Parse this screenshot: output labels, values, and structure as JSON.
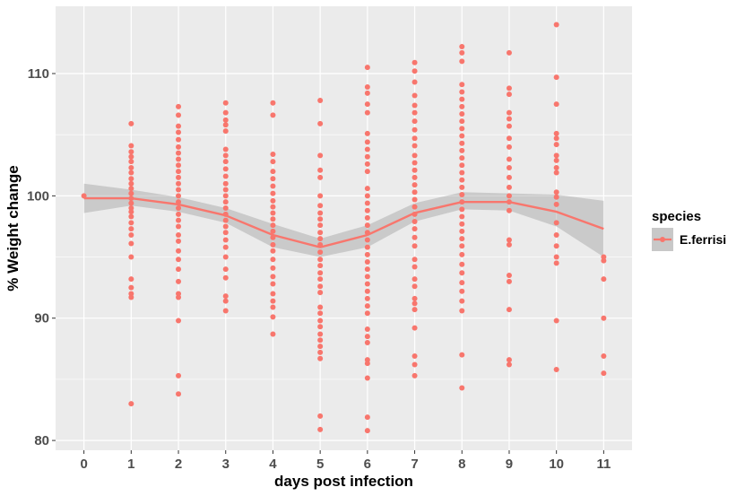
{
  "chart_data": {
    "type": "scatter",
    "title": "",
    "xlabel": "days post infection",
    "ylabel": "% Weight change",
    "xlim": [
      -0.6,
      11.6
    ],
    "ylim": [
      79.2,
      115.5
    ],
    "x_ticks": [
      0,
      1,
      2,
      3,
      4,
      5,
      6,
      7,
      8,
      9,
      10,
      11
    ],
    "y_ticks": [
      80,
      90,
      100,
      110
    ],
    "y_minor_ticks": [
      85,
      95,
      105
    ],
    "grid": true,
    "legend": {
      "title": "species",
      "position": "right",
      "entries": [
        "E.ferrisi"
      ]
    },
    "series": [
      {
        "name": "E.ferrisi",
        "color": "#f8766d",
        "points": [
          [
            0,
            100.0
          ],
          [
            1,
            83.0
          ],
          [
            1,
            91.7
          ],
          [
            1,
            92.0
          ],
          [
            1,
            92.5
          ],
          [
            1,
            93.2
          ],
          [
            1,
            95.0
          ],
          [
            1,
            96.1
          ],
          [
            1,
            96.8
          ],
          [
            1,
            97.3
          ],
          [
            1,
            97.8
          ],
          [
            1,
            98.3
          ],
          [
            1,
            98.7
          ],
          [
            1,
            99.0
          ],
          [
            1,
            99.4
          ],
          [
            1,
            99.8
          ],
          [
            1,
            100.2
          ],
          [
            1,
            100.6
          ],
          [
            1,
            101.0
          ],
          [
            1,
            101.4
          ],
          [
            1,
            101.9
          ],
          [
            1,
            102.3
          ],
          [
            1,
            102.8
          ],
          [
            1,
            103.2
          ],
          [
            1,
            103.6
          ],
          [
            1,
            104.1
          ],
          [
            1,
            105.9
          ],
          [
            2,
            83.8
          ],
          [
            2,
            85.3
          ],
          [
            2,
            89.8
          ],
          [
            2,
            91.7
          ],
          [
            2,
            92.0
          ],
          [
            2,
            93.0
          ],
          [
            2,
            94.0
          ],
          [
            2,
            94.8
          ],
          [
            2,
            95.5
          ],
          [
            2,
            96.3
          ],
          [
            2,
            96.8
          ],
          [
            2,
            97.5
          ],
          [
            2,
            98.0
          ],
          [
            2,
            98.5
          ],
          [
            2,
            99.0
          ],
          [
            2,
            99.5
          ],
          [
            2,
            100.0
          ],
          [
            2,
            100.5
          ],
          [
            2,
            101.0
          ],
          [
            2,
            101.5
          ],
          [
            2,
            102.0
          ],
          [
            2,
            102.5
          ],
          [
            2,
            103.0
          ],
          [
            2,
            103.5
          ],
          [
            2,
            104.0
          ],
          [
            2,
            104.6
          ],
          [
            2,
            105.2
          ],
          [
            2,
            105.7
          ],
          [
            2,
            106.6
          ],
          [
            2,
            107.3
          ],
          [
            3,
            90.6
          ],
          [
            3,
            91.4
          ],
          [
            3,
            91.8
          ],
          [
            3,
            93.3
          ],
          [
            3,
            94.0
          ],
          [
            3,
            95.0
          ],
          [
            3,
            95.8
          ],
          [
            3,
            96.4
          ],
          [
            3,
            97.0
          ],
          [
            3,
            97.5
          ],
          [
            3,
            98.0
          ],
          [
            3,
            98.5
          ],
          [
            3,
            99.0
          ],
          [
            3,
            99.5
          ],
          [
            3,
            100.0
          ],
          [
            3,
            100.5
          ],
          [
            3,
            101.0
          ],
          [
            3,
            101.6
          ],
          [
            3,
            102.2
          ],
          [
            3,
            102.8
          ],
          [
            3,
            103.3
          ],
          [
            3,
            103.8
          ],
          [
            3,
            105.3
          ],
          [
            3,
            105.8
          ],
          [
            3,
            106.2
          ],
          [
            3,
            106.8
          ],
          [
            3,
            107.6
          ],
          [
            4,
            88.7
          ],
          [
            4,
            90.1
          ],
          [
            4,
            90.9
          ],
          [
            4,
            91.4
          ],
          [
            4,
            92.0
          ],
          [
            4,
            92.8
          ],
          [
            4,
            93.4
          ],
          [
            4,
            94.1
          ],
          [
            4,
            94.8
          ],
          [
            4,
            95.5
          ],
          [
            4,
            96.0
          ],
          [
            4,
            96.6
          ],
          [
            4,
            97.1
          ],
          [
            4,
            97.6
          ],
          [
            4,
            98.1
          ],
          [
            4,
            98.6
          ],
          [
            4,
            99.1
          ],
          [
            4,
            99.6
          ],
          [
            4,
            100.2
          ],
          [
            4,
            100.8
          ],
          [
            4,
            101.4
          ],
          [
            4,
            102.0
          ],
          [
            4,
            102.8
          ],
          [
            4,
            103.4
          ],
          [
            4,
            106.6
          ],
          [
            4,
            107.6
          ],
          [
            5,
            80.9
          ],
          [
            5,
            82.0
          ],
          [
            5,
            86.7
          ],
          [
            5,
            87.2
          ],
          [
            5,
            87.7
          ],
          [
            5,
            88.2
          ],
          [
            5,
            88.7
          ],
          [
            5,
            89.3
          ],
          [
            5,
            89.8
          ],
          [
            5,
            90.4
          ],
          [
            5,
            90.9
          ],
          [
            5,
            92.1
          ],
          [
            5,
            92.6
          ],
          [
            5,
            93.2
          ],
          [
            5,
            93.7
          ],
          [
            5,
            94.3
          ],
          [
            5,
            94.8
          ],
          [
            5,
            95.4
          ],
          [
            5,
            96.0
          ],
          [
            5,
            96.5
          ],
          [
            5,
            97.0
          ],
          [
            5,
            97.6
          ],
          [
            5,
            98.1
          ],
          [
            5,
            98.6
          ],
          [
            5,
            99.2
          ],
          [
            5,
            100.0
          ],
          [
            5,
            101.5
          ],
          [
            5,
            102.1
          ],
          [
            5,
            103.3
          ],
          [
            5,
            105.9
          ],
          [
            5,
            107.8
          ],
          [
            6,
            80.8
          ],
          [
            6,
            81.9
          ],
          [
            6,
            85.1
          ],
          [
            6,
            86.3
          ],
          [
            6,
            86.6
          ],
          [
            6,
            88.0
          ],
          [
            6,
            88.5
          ],
          [
            6,
            89.1
          ],
          [
            6,
            90.4
          ],
          [
            6,
            91.0
          ],
          [
            6,
            91.6
          ],
          [
            6,
            92.2
          ],
          [
            6,
            92.8
          ],
          [
            6,
            93.4
          ],
          [
            6,
            94.0
          ],
          [
            6,
            94.6
          ],
          [
            6,
            95.2
          ],
          [
            6,
            95.8
          ],
          [
            6,
            96.4
          ],
          [
            6,
            97.0
          ],
          [
            6,
            97.6
          ],
          [
            6,
            98.2
          ],
          [
            6,
            98.8
          ],
          [
            6,
            99.4
          ],
          [
            6,
            100.0
          ],
          [
            6,
            100.6
          ],
          [
            6,
            102.0
          ],
          [
            6,
            102.6
          ],
          [
            6,
            103.2
          ],
          [
            6,
            103.8
          ],
          [
            6,
            104.4
          ],
          [
            6,
            105.1
          ],
          [
            6,
            106.8
          ],
          [
            6,
            107.5
          ],
          [
            6,
            108.4
          ],
          [
            6,
            108.9
          ],
          [
            6,
            110.5
          ],
          [
            7,
            85.3
          ],
          [
            7,
            86.2
          ],
          [
            7,
            86.9
          ],
          [
            7,
            89.2
          ],
          [
            7,
            90.7
          ],
          [
            7,
            91.2
          ],
          [
            7,
            91.6
          ],
          [
            7,
            92.6
          ],
          [
            7,
            93.2
          ],
          [
            7,
            94.2
          ],
          [
            7,
            94.8
          ],
          [
            7,
            95.9
          ],
          [
            7,
            96.6
          ],
          [
            7,
            97.3
          ],
          [
            7,
            97.9
          ],
          [
            7,
            98.5
          ],
          [
            7,
            99.1
          ],
          [
            7,
            99.7
          ],
          [
            7,
            100.3
          ],
          [
            7,
            100.9
          ],
          [
            7,
            101.5
          ],
          [
            7,
            102.1
          ],
          [
            7,
            102.7
          ],
          [
            7,
            103.3
          ],
          [
            7,
            104.1
          ],
          [
            7,
            104.7
          ],
          [
            7,
            105.4
          ],
          [
            7,
            106.1
          ],
          [
            7,
            106.8
          ],
          [
            7,
            107.4
          ],
          [
            7,
            108.2
          ],
          [
            7,
            109.3
          ],
          [
            7,
            110.2
          ],
          [
            7,
            110.9
          ],
          [
            8,
            84.3
          ],
          [
            8,
            87.0
          ],
          [
            8,
            90.6
          ],
          [
            8,
            91.4
          ],
          [
            8,
            92.2
          ],
          [
            8,
            92.9
          ],
          [
            8,
            93.7
          ],
          [
            8,
            94.4
          ],
          [
            8,
            95.2
          ],
          [
            8,
            95.9
          ],
          [
            8,
            96.5
          ],
          [
            8,
            97.1
          ],
          [
            8,
            97.7
          ],
          [
            8,
            98.3
          ],
          [
            8,
            98.9
          ],
          [
            8,
            99.5
          ],
          [
            8,
            100.1
          ],
          [
            8,
            100.7
          ],
          [
            8,
            101.3
          ],
          [
            8,
            101.9
          ],
          [
            8,
            102.5
          ],
          [
            8,
            103.1
          ],
          [
            8,
            103.7
          ],
          [
            8,
            104.3
          ],
          [
            8,
            104.9
          ],
          [
            8,
            105.5
          ],
          [
            8,
            106.1
          ],
          [
            8,
            106.7
          ],
          [
            8,
            107.3
          ],
          [
            8,
            107.9
          ],
          [
            8,
            108.5
          ],
          [
            8,
            109.1
          ],
          [
            8,
            111.0
          ],
          [
            8,
            111.7
          ],
          [
            8,
            112.2
          ],
          [
            9,
            86.2
          ],
          [
            9,
            86.6
          ],
          [
            9,
            90.7
          ],
          [
            9,
            93.0
          ],
          [
            9,
            93.5
          ],
          [
            9,
            96.0
          ],
          [
            9,
            96.4
          ],
          [
            9,
            98.8
          ],
          [
            9,
            99.5
          ],
          [
            9,
            100.0
          ],
          [
            9,
            100.7
          ],
          [
            9,
            101.5
          ],
          [
            9,
            102.3
          ],
          [
            9,
            103.0
          ],
          [
            9,
            104.0
          ],
          [
            9,
            104.7
          ],
          [
            9,
            105.7
          ],
          [
            9,
            106.3
          ],
          [
            9,
            106.8
          ],
          [
            9,
            108.3
          ],
          [
            9,
            108.8
          ],
          [
            9,
            111.7
          ],
          [
            10,
            85.8
          ],
          [
            10,
            89.8
          ],
          [
            10,
            94.5
          ],
          [
            10,
            95.0
          ],
          [
            10,
            95.9
          ],
          [
            10,
            96.8
          ],
          [
            10,
            97.8
          ],
          [
            10,
            99.3
          ],
          [
            10,
            99.9
          ],
          [
            10,
            100.3
          ],
          [
            10,
            101.9
          ],
          [
            10,
            102.3
          ],
          [
            10,
            102.9
          ],
          [
            10,
            103.3
          ],
          [
            10,
            104.2
          ],
          [
            10,
            104.7
          ],
          [
            10,
            105.1
          ],
          [
            10,
            107.5
          ],
          [
            10,
            109.7
          ],
          [
            10,
            114.0
          ],
          [
            11,
            85.5
          ],
          [
            11,
            86.9
          ],
          [
            11,
            90.0
          ],
          [
            11,
            93.2
          ],
          [
            11,
            94.7
          ],
          [
            11,
            95.0
          ]
        ]
      }
    ],
    "smooth": {
      "x": [
        0,
        1,
        2,
        3,
        4,
        5,
        6,
        7,
        8,
        9,
        10,
        11
      ],
      "y": [
        99.8,
        99.8,
        99.3,
        98.4,
        96.8,
        95.8,
        96.8,
        98.6,
        99.5,
        99.5,
        98.7,
        97.3
      ],
      "ci_low": [
        98.6,
        99.2,
        98.7,
        97.8,
        95.8,
        95.0,
        95.8,
        97.9,
        98.9,
        98.8,
        97.5,
        95.0
      ],
      "ci_high": [
        101.0,
        100.5,
        99.9,
        99.0,
        97.7,
        96.5,
        97.6,
        99.4,
        100.3,
        100.2,
        100.1,
        99.6
      ],
      "line_color": "#f8766d",
      "band_color": "#999999"
    },
    "colors": {
      "panel": "#ebebeb",
      "grid": "#ffffff",
      "tick_text": "#4d4d4d",
      "tick_mark": "#333333",
      "legend_key": "#c8c8c8"
    }
  }
}
